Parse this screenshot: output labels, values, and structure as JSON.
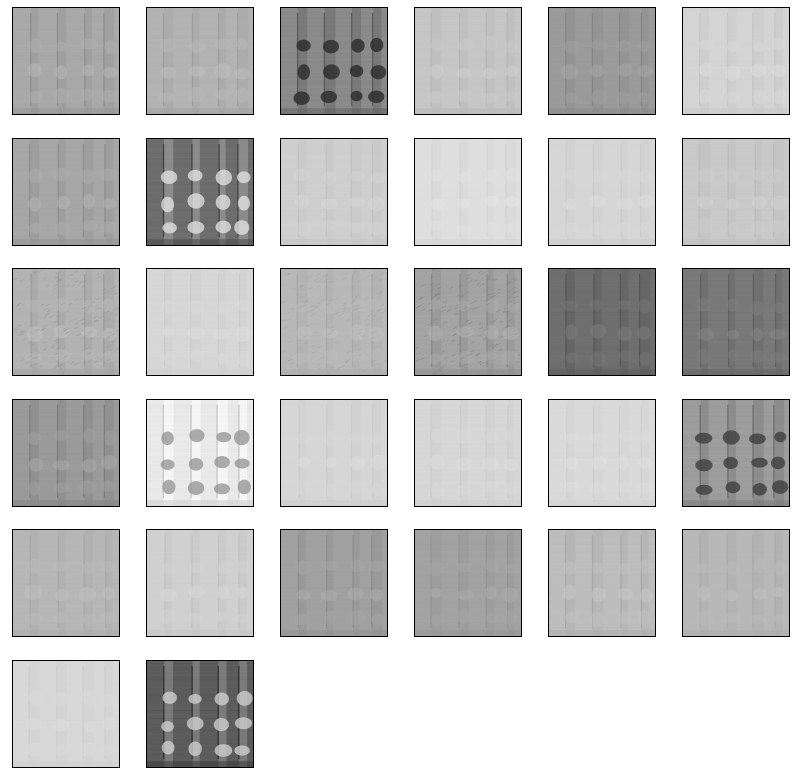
{
  "figure": {
    "tile_count": 32,
    "columns": 6,
    "tiles": [
      {
        "tone": "#a9a9a9",
        "contrast": 0.55,
        "bands": "lowmid"
      },
      {
        "tone": "#b3b3b3",
        "contrast": 0.45,
        "bands": "mid"
      },
      {
        "tone": "#8a8a8a",
        "contrast": 1.0,
        "bands": "strong-dark"
      },
      {
        "tone": "#c6c6c6",
        "contrast": 0.35,
        "bands": "soft"
      },
      {
        "tone": "#9b9b9b",
        "contrast": 0.45,
        "bands": "flat"
      },
      {
        "tone": "#d4d4d4",
        "contrast": 0.3,
        "bands": "soft"
      },
      {
        "tone": "#a7a7a7",
        "contrast": 0.55,
        "bands": "lowmid"
      },
      {
        "tone": "#6d6d6d",
        "contrast": 1.0,
        "bands": "strong-light"
      },
      {
        "tone": "#cfcfcf",
        "contrast": 0.3,
        "bands": "soft"
      },
      {
        "tone": "#dedede",
        "contrast": 0.25,
        "bands": "soft"
      },
      {
        "tone": "#d6d6d6",
        "contrast": 0.25,
        "bands": "soft"
      },
      {
        "tone": "#c9c9c9",
        "contrast": 0.3,
        "bands": "soft"
      },
      {
        "tone": "#b3b3b3",
        "contrast": 0.5,
        "bands": "noisy"
      },
      {
        "tone": "#d7d7d7",
        "contrast": 0.25,
        "bands": "soft"
      },
      {
        "tone": "#b8b8b8",
        "contrast": 0.35,
        "bands": "diag"
      },
      {
        "tone": "#a4a4a4",
        "contrast": 0.6,
        "bands": "noisy"
      },
      {
        "tone": "#6f6f6f",
        "contrast": 0.55,
        "bands": "dark"
      },
      {
        "tone": "#797979",
        "contrast": 0.55,
        "bands": "dark"
      },
      {
        "tone": "#9a9a9a",
        "contrast": 0.6,
        "bands": "lowmid"
      },
      {
        "tone": "#e9e9e9",
        "contrast": 0.8,
        "bands": "blotch-light"
      },
      {
        "tone": "#d6d6d6",
        "contrast": 0.25,
        "bands": "soft"
      },
      {
        "tone": "#d7d7d7",
        "contrast": 0.25,
        "bands": "soft"
      },
      {
        "tone": "#dadada",
        "contrast": 0.25,
        "bands": "soft"
      },
      {
        "tone": "#9d9d9d",
        "contrast": 1.0,
        "bands": "blotch-dark"
      },
      {
        "tone": "#b7b7b7",
        "contrast": 0.35,
        "bands": "soft"
      },
      {
        "tone": "#d0d0d0",
        "contrast": 0.3,
        "bands": "soft"
      },
      {
        "tone": "#a1a1a1",
        "contrast": 0.45,
        "bands": "lowmid"
      },
      {
        "tone": "#a3a3a3",
        "contrast": 0.35,
        "bands": "flat"
      },
      {
        "tone": "#bdbdbd",
        "contrast": 0.45,
        "bands": "soft"
      },
      {
        "tone": "#b8b8b8",
        "contrast": 0.3,
        "bands": "flat"
      },
      {
        "tone": "#d8d8d8",
        "contrast": 0.25,
        "bands": "soft"
      },
      {
        "tone": "#5c5c5c",
        "contrast": 1.0,
        "bands": "strong-light"
      }
    ]
  }
}
